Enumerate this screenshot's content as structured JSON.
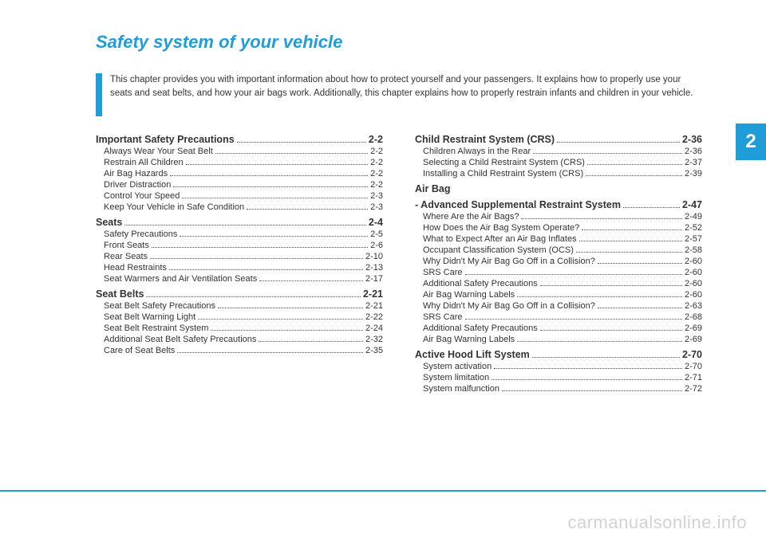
{
  "colors": {
    "accent": "#1f9dd9",
    "text": "#333333",
    "watermark": "rgba(0,0,0,0.18)",
    "background": "#ffffff"
  },
  "chapter": {
    "title": "Safety system of your vehicle",
    "number": "2",
    "intro": "This chapter provides you with important information about how to protect yourself and your passengers. It explains how to properly use your seats and seat belts, and how your air bags work. Additionally, this chapter explains how to properly restrain infants and children in your vehicle."
  },
  "toc_left": [
    {
      "type": "section",
      "label": "Important Safety Precautions",
      "page": "2-2"
    },
    {
      "type": "item",
      "label": "Always Wear Your Seat Belt",
      "page": "2-2"
    },
    {
      "type": "item",
      "label": "Restrain All Children",
      "page": "2-2"
    },
    {
      "type": "item",
      "label": "Air Bag Hazards",
      "page": "2-2"
    },
    {
      "type": "item",
      "label": "Driver Distraction",
      "page": "2-2"
    },
    {
      "type": "item",
      "label": "Control Your Speed",
      "page": "2-3"
    },
    {
      "type": "item",
      "label": "Keep Your Vehicle in Safe Condition",
      "page": "2-3"
    },
    {
      "type": "section",
      "label": "Seats",
      "page": "2-4"
    },
    {
      "type": "item",
      "label": "Safety Precautions",
      "page": "2-5"
    },
    {
      "type": "item",
      "label": "Front Seats",
      "page": "2-6"
    },
    {
      "type": "item",
      "label": "Rear Seats",
      "page": "2-10"
    },
    {
      "type": "item",
      "label": "Head Restraints",
      "page": "2-13"
    },
    {
      "type": "item",
      "label": "Seat Warmers and Air Ventilation Seats",
      "page": "2-17"
    },
    {
      "type": "section",
      "label": "Seat Belts",
      "page": "2-21"
    },
    {
      "type": "item",
      "label": "Seat Belt Safety Precautions",
      "page": "2-21"
    },
    {
      "type": "item",
      "label": "Seat Belt Warning Light",
      "page": "2-22"
    },
    {
      "type": "item",
      "label": "Seat Belt Restraint System",
      "page": "2-24"
    },
    {
      "type": "item",
      "label": "Additional Seat Belt Safety Precautions",
      "page": "2-32"
    },
    {
      "type": "item",
      "label": "Care of Seat Belts",
      "page": "2-35"
    }
  ],
  "toc_right": [
    {
      "type": "section",
      "label": "Child Restraint System (CRS)",
      "page": "2-36"
    },
    {
      "type": "item",
      "label": "Children Always in the Rear",
      "page": "2-36"
    },
    {
      "type": "item",
      "label": "Selecting a Child Restraint System (CRS)",
      "page": "2-37"
    },
    {
      "type": "item",
      "label": "Installing a Child Restraint System (CRS)",
      "page": "2-39"
    },
    {
      "type": "section",
      "label": "Air Bag",
      "page": ""
    },
    {
      "type": "section",
      "label": "- Advanced Supplemental Restraint System",
      "page": "2-47"
    },
    {
      "type": "item",
      "label": "Where Are the Air Bags?",
      "page": "2-49"
    },
    {
      "type": "item",
      "label": "How Does the Air Bag System Operate?",
      "page": "2-52"
    },
    {
      "type": "item",
      "label": "What to Expect After an Air Bag Inflates",
      "page": "2-57"
    },
    {
      "type": "item",
      "label": "Occupant Classification System (OCS)",
      "page": "2-58"
    },
    {
      "type": "item",
      "label": "Why Didn't My Air Bag Go Off in a Collision?",
      "page": "2-60"
    },
    {
      "type": "item",
      "label": "SRS Care",
      "page": "2-60"
    },
    {
      "type": "item",
      "label": "Additional Safety Precautions",
      "page": "2-60"
    },
    {
      "type": "item",
      "label": "Air Bag Warning Labels",
      "page": "2-60"
    },
    {
      "type": "item",
      "label": "Why Didn't My Air Bag Go Off in a Collision?",
      "page": "2-63"
    },
    {
      "type": "item",
      "label": "SRS Care",
      "page": "2-68"
    },
    {
      "type": "item",
      "label": "Additional Safety Precautions",
      "page": "2-69"
    },
    {
      "type": "item",
      "label": "Air Bag Warning Labels",
      "page": "2-69"
    },
    {
      "type": "section",
      "label": "Active Hood Lift System",
      "page": "2-70"
    },
    {
      "type": "item",
      "label": "System activation",
      "page": "2-70"
    },
    {
      "type": "item",
      "label": "System limitation",
      "page": "2-71"
    },
    {
      "type": "item",
      "label": "System malfunction",
      "page": "2-72"
    }
  ],
  "watermark": "carmanualsonline.info"
}
